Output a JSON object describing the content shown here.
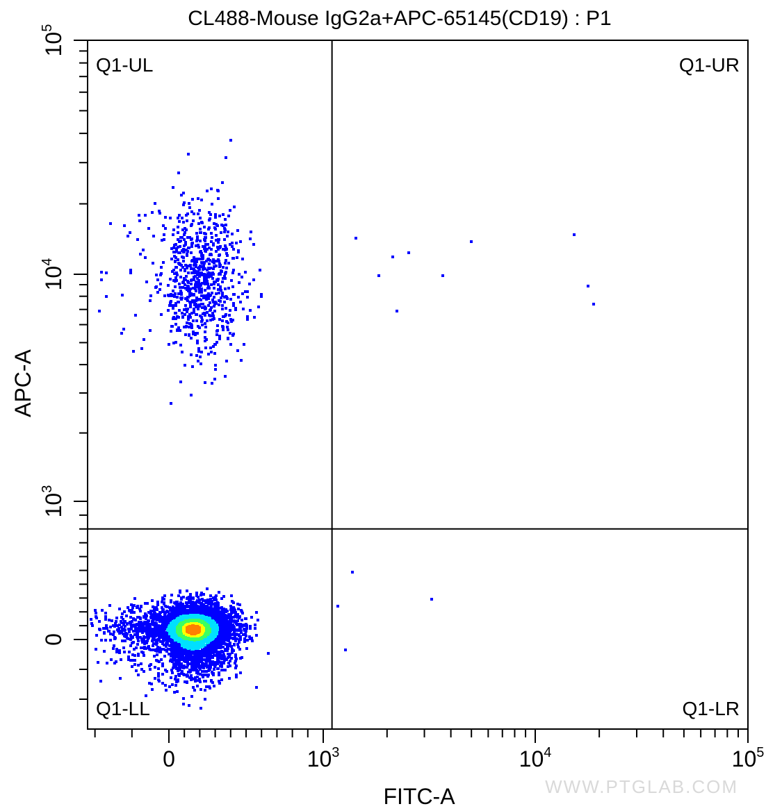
{
  "chart_data": {
    "type": "scatter",
    "title": "CL488-Mouse IgG2a+APC-65145(CD19) : P1",
    "xlabel": "FITC-A",
    "ylabel": "APC-A",
    "x_scale": "biexponential",
    "y_scale": "biexponential",
    "xlim": [
      -220,
      100000
    ],
    "ylim": [
      -300,
      100000
    ],
    "x_ticks": [
      {
        "value": 0,
        "base": "0",
        "exp": ""
      },
      {
        "value": 1000,
        "base": "10",
        "exp": "3"
      },
      {
        "value": 10000,
        "base": "10",
        "exp": "4"
      },
      {
        "value": 100000,
        "base": "10",
        "exp": "5"
      }
    ],
    "y_ticks": [
      {
        "value": 0,
        "base": "0",
        "exp": ""
      },
      {
        "value": 1000,
        "base": "10",
        "exp": "3"
      },
      {
        "value": 10000,
        "base": "10",
        "exp": "4"
      },
      {
        "value": 100000,
        "base": "10",
        "exp": "5"
      }
    ],
    "gate": {
      "x": 1100,
      "y": 800
    },
    "quadrants": {
      "ul": "Q1-UL",
      "ur": "Q1-UR",
      "ll": "Q1-LL",
      "lr": "Q1-LR"
    },
    "populations": [
      {
        "name": "",
        "quadrant": "LL",
        "x_center": 150,
        "y_center": 80,
        "x_spread": 130,
        "y_spread": 90,
        "events": 5200,
        "density": "high"
      },
      {
        "name": "",
        "quadrant": "UL",
        "x_center": 180,
        "y_center": 9500,
        "x_spread": 140,
        "y_spread": 4000,
        "events": 780,
        "density": "low"
      }
    ],
    "sparse_points": [
      [
        1400,
        14500
      ],
      [
        2100,
        12000
      ],
      [
        2500,
        12500
      ],
      [
        1800,
        10000
      ],
      [
        3600,
        10000
      ],
      [
        4900,
        14000
      ],
      [
        15000,
        15000
      ],
      [
        17500,
        9000
      ],
      [
        18500,
        7500
      ],
      [
        2200,
        7000
      ],
      [
        1350,
        500
      ],
      [
        1150,
        250
      ],
      [
        1250,
        -30
      ],
      [
        3200,
        300
      ]
    ],
    "grid": false,
    "legend": "none",
    "colors": {
      "low": "#0000ff",
      "mid": "#00e0ff",
      "mid2": "#3cff60",
      "high": "#ffff00",
      "peak": "#ff8000"
    }
  },
  "watermark": "WWW.PTGLAB.COM"
}
